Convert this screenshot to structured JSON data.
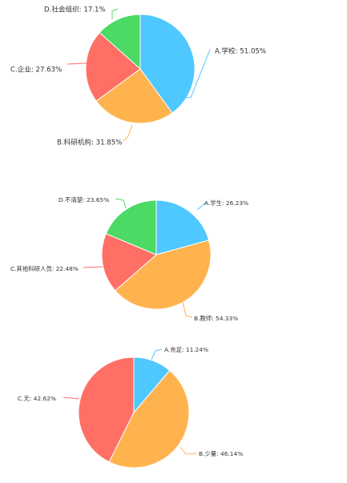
{
  "chart_data": [
    {
      "type": "pie",
      "slices": [
        {
          "label": "A.学校",
          "value": 51.05,
          "display": "A.学校: 51.05%",
          "color": "#4fc7ff"
        },
        {
          "label": "B.科研机构",
          "value": 31.85,
          "display": "B.科研机构: 31.85%",
          "color": "#ffb34f"
        },
        {
          "label": "C.企业",
          "value": 27.63,
          "display": "C.企业: 27.63%",
          "color": "#ff6f66"
        },
        {
          "label": "D.社会组织",
          "value": 17.1,
          "display": "D.社会组织: 17.1%",
          "color": "#4cd964"
        }
      ]
    },
    {
      "type": "pie",
      "slices": [
        {
          "label": "A.学生",
          "value": 26.23,
          "display": "A.学生: 26.23%",
          "color": "#4fc7ff"
        },
        {
          "label": "B.教师",
          "value": 54.33,
          "display": "B.教师: 54.33%",
          "color": "#ffb34f"
        },
        {
          "label": "C.其他科研人员",
          "value": 22.48,
          "display": "C.其他科研人员: 22.48%",
          "color": "#ff6f66"
        },
        {
          "label": "D.不清楚",
          "value": 23.65,
          "display": "D.不清楚: 23.65%",
          "color": "#4cd964"
        }
      ]
    },
    {
      "type": "pie",
      "slices": [
        {
          "label": "A.充足",
          "value": 11.24,
          "display": "A.充足: 11.24%",
          "color": "#4fc7ff"
        },
        {
          "label": "B.少量",
          "value": 46.14,
          "display": "B.少量: 46.14%",
          "color": "#ffb34f"
        },
        {
          "label": "C.无",
          "value": 42.62,
          "display": "C.无: 42.62%",
          "color": "#ff6f66"
        }
      ]
    }
  ]
}
